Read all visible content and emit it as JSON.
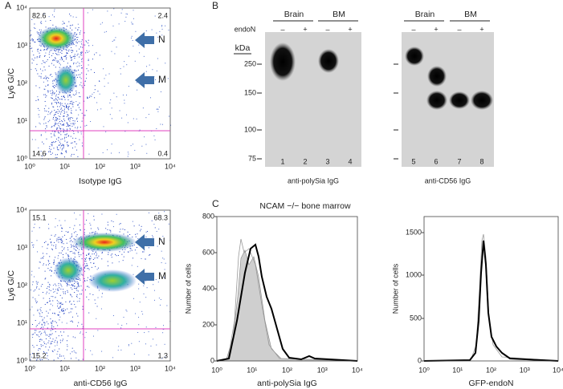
{
  "panels": {
    "A": {
      "label": "A",
      "log_ticks": [
        "10⁰",
        "10¹",
        "10²",
        "10³",
        "10⁴"
      ],
      "plots": [
        {
          "y_axis_label": "Ly6 G/C",
          "x_axis_label": "Isotype IgG",
          "quadrant_values": [
            "82.6",
            "2.4",
            "14.6",
            "0.4"
          ],
          "arrows": [
            "N",
            "M"
          ]
        },
        {
          "y_axis_label": "Ly6 G/C",
          "x_axis_label": "anti-CD56 IgG",
          "quadrant_values": [
            "15.1",
            "68.3",
            "15.2",
            "1.3"
          ],
          "arrows": [
            "N",
            "M"
          ]
        }
      ]
    },
    "B": {
      "label": "B",
      "treatment_label": "endoN",
      "size_unit": "kDa",
      "size_markers": [
        "250",
        "150",
        "100",
        "75"
      ],
      "blots": [
        {
          "groups": [
            "Brain",
            "BM"
          ],
          "treatment_signs": [
            "–",
            "+",
            "–",
            "+"
          ],
          "lanes": [
            "1",
            "2",
            "3",
            "4"
          ],
          "antibody": "anti-polySia IgG"
        },
        {
          "groups": [
            "Brain",
            "BM"
          ],
          "treatment_signs": [
            "–",
            "+",
            "–",
            "+"
          ],
          "lanes": [
            "5",
            "6",
            "7",
            "8"
          ],
          "antibody": "anti-CD56 IgG"
        }
      ]
    },
    "C": {
      "label": "C",
      "title": "NCAM −/− bone marrow",
      "log_ticks": [
        "10⁰",
        "10¹",
        "10²",
        "10³",
        "10⁴"
      ],
      "histograms": [
        {
          "y_axis_label": "Number of cells",
          "y_ticks": [
            "0",
            "200",
            "400",
            "600",
            "800"
          ],
          "x_axis_label": "anti-polySia IgG"
        },
        {
          "y_axis_label": "Number of cells",
          "y_ticks": [
            "0",
            "500",
            "1000",
            "1500"
          ],
          "x_axis_label": "GFP-endoN"
        }
      ]
    }
  }
}
